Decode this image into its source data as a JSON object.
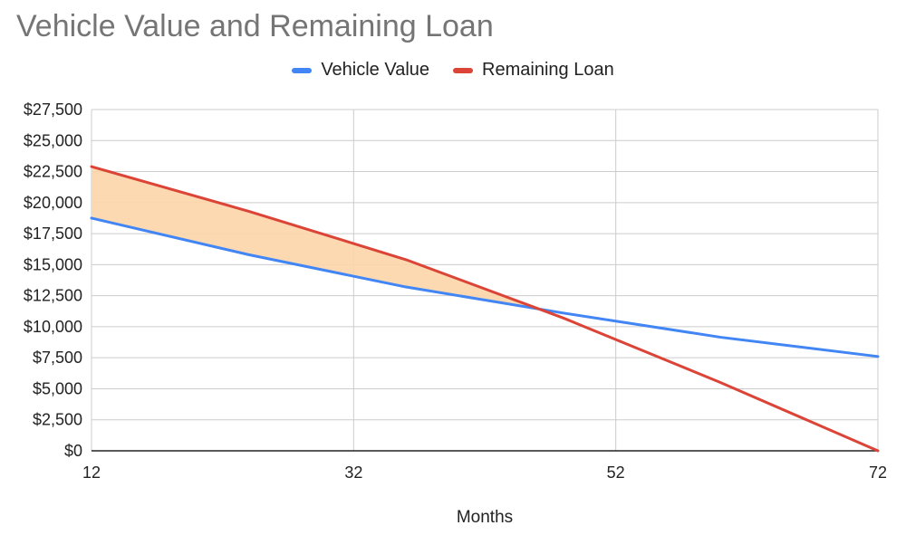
{
  "chart_data": {
    "type": "line",
    "title": "Vehicle Value and Remaining Loan",
    "xlabel": "Months",
    "ylabel": "",
    "xlim": [
      12,
      72
    ],
    "ylim": [
      0,
      27500
    ],
    "x_ticks": [
      "12",
      "32",
      "52",
      "72"
    ],
    "y_ticks": [
      "$0",
      "$2,500",
      "$5,000",
      "$7,500",
      "$10,000",
      "$12,500",
      "$15,000",
      "$17,500",
      "$20,000",
      "$22,500",
      "$25,000",
      "$27,500"
    ],
    "grid": true,
    "legend_position": "top",
    "series": [
      {
        "name": "Vehicle Value",
        "color": "#4285f4",
        "points": [
          [
            12,
            18750
          ],
          [
            24,
            15800
          ],
          [
            36,
            13200
          ],
          [
            48,
            11100
          ],
          [
            60,
            9150
          ],
          [
            72,
            7600
          ]
        ]
      },
      {
        "name": "Remaining Loan",
        "color": "#db4437",
        "points": [
          [
            12,
            22900
          ],
          [
            24,
            19300
          ],
          [
            36,
            15400
          ],
          [
            48,
            10700
          ],
          [
            60,
            5500
          ],
          [
            72,
            0
          ]
        ]
      }
    ],
    "shaded_region": {
      "between": [
        "Vehicle Value",
        "Remaining Loan"
      ],
      "color": "#fcd5a8"
    }
  }
}
